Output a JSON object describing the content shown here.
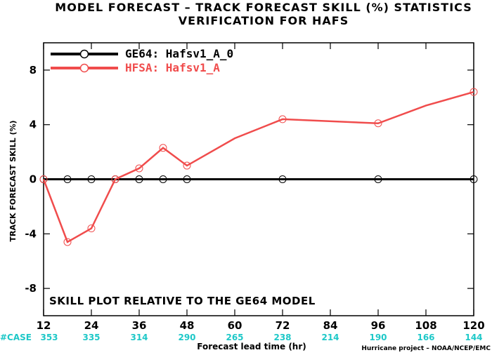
{
  "title_line1": "MODEL FORECAST – TRACK FORECAST SKILL (%) STATISTICS",
  "title_line2": "VERIFICATION FOR HAFS",
  "annotation": "SKILL PLOT RELATIVE TO THE GE64 MODEL",
  "case_label": "#CASE",
  "case_counts": [
    "353",
    "335",
    "314",
    "290",
    "265",
    "238",
    "214",
    "190",
    "166",
    "144"
  ],
  "credit": "Hurricane project – NOAA/NCEP/EMC",
  "colors": {
    "ge64": "#000000",
    "hfsa": "#f04c4c",
    "case": "#1ec8c8"
  },
  "chart_data": {
    "type": "line",
    "xlabel": "Forecast lead time (hr)",
    "ylabel": "TRACK FORECAST SKILL (%)",
    "x_ticks": [
      12,
      24,
      36,
      48,
      60,
      72,
      84,
      96,
      108,
      120
    ],
    "y_ticks": [
      8,
      4,
      0,
      -4,
      -8
    ],
    "xlim": [
      12,
      120
    ],
    "ylim": [
      -10,
      10
    ],
    "grid": false,
    "legend_position": "top-left",
    "series": [
      {
        "name": "GE64: Hafsv1_A_0",
        "color": "#000000",
        "x": [
          12,
          18,
          24,
          30,
          36,
          42,
          48,
          72,
          96,
          120
        ],
        "y": [
          0,
          0,
          0,
          0,
          0,
          0,
          0,
          0,
          0,
          0
        ],
        "markers": [
          12,
          18,
          24,
          30,
          36,
          42,
          48,
          72,
          96,
          120
        ]
      },
      {
        "name": "HFSA: Hafsv1_A",
        "color": "#f04c4c",
        "x": [
          12,
          18,
          24,
          30,
          36,
          42,
          48,
          60,
          72,
          96,
          108,
          120
        ],
        "y": [
          0,
          -4.6,
          -3.6,
          0,
          0.8,
          2.3,
          1.0,
          3.0,
          4.4,
          4.1,
          5.4,
          6.4
        ],
        "markers": [
          12,
          18,
          24,
          30,
          36,
          42,
          48,
          72,
          96,
          120
        ]
      }
    ]
  }
}
